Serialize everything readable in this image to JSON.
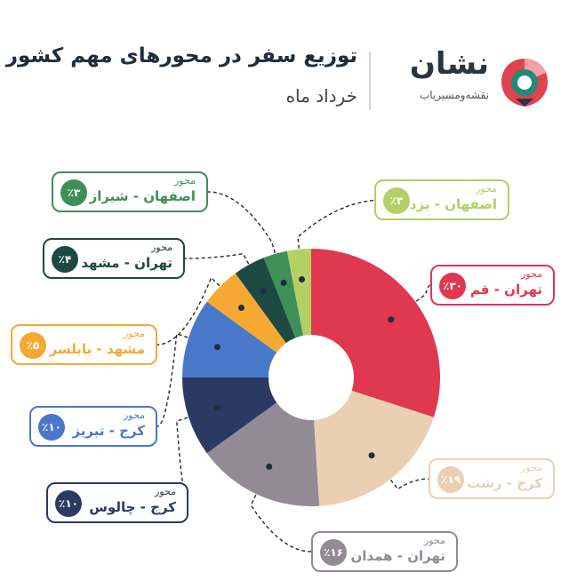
{
  "header": {
    "title": "توزیع سفر در محورهای مهم کشور",
    "subtitle": "خرداد ماه"
  },
  "brand": {
    "name": "نشان",
    "tagline": "نقشه‌ومسیریاب",
    "icon": "map-pin-logo-icon",
    "colors": {
      "red": "#e0424e",
      "teal": "#1f8a7a"
    }
  },
  "callout_caption": "محور",
  "chart_data": {
    "type": "pie",
    "variant": "donut",
    "title": "توزیع سفر در محورهای مهم کشور",
    "subtitle": "خرداد ماه",
    "unit": "%",
    "slices": [
      {
        "label": "تهران - قم",
        "value": 30,
        "value_label": "٪۳۰",
        "color": "#e0384f"
      },
      {
        "label": "کرج - رشت",
        "value": 19,
        "value_label": "٪۱۹",
        "color": "#ebcfb3"
      },
      {
        "label": "تهران - همدان",
        "value": 16,
        "value_label": "٪۱۶",
        "color": "#928b96"
      },
      {
        "label": "کرج - چالوس",
        "value": 10,
        "value_label": "٪۱۰",
        "color": "#2a3a63"
      },
      {
        "label": "کرج - تبریز",
        "value": 10,
        "value_label": "٪۱۰",
        "color": "#4a78c9"
      },
      {
        "label": "مشهد - بابلسر",
        "value": 5,
        "value_label": "٪۵",
        "color": "#f5a933"
      },
      {
        "label": "تهران - مشهد",
        "value": 4,
        "value_label": "٪۴",
        "color": "#1c4a42"
      },
      {
        "label": "اصفهان - شیراز",
        "value": 3,
        "value_label": "٪۳",
        "color": "#3f8f58"
      },
      {
        "label": "اصفهان - یزد",
        "value": 3,
        "value_label": "٪۳",
        "color": "#b5cf67"
      }
    ]
  }
}
